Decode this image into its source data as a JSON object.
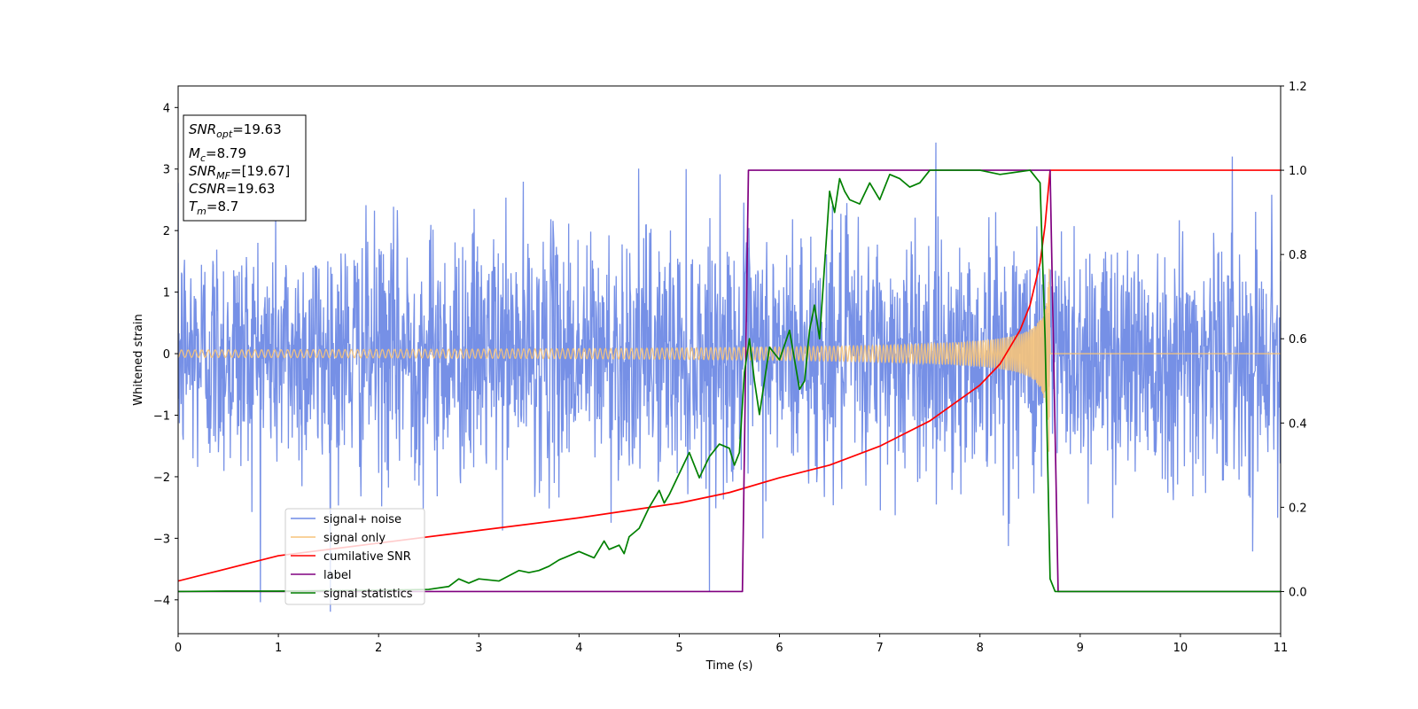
{
  "chart_data": {
    "type": "line",
    "xlabel": "Time (s)",
    "ylabel": "Whitened strain",
    "xlim": [
      0,
      11
    ],
    "ylim_left": [
      -4.55,
      4.35
    ],
    "ylim_right": [
      -0.1,
      1.2
    ],
    "x_ticks": [
      "0",
      "1",
      "2",
      "3",
      "4",
      "5",
      "6",
      "7",
      "8",
      "9",
      "10",
      "11"
    ],
    "y_left_ticks": [
      "4",
      "3",
      "2",
      "1",
      "0",
      "−1",
      "−2",
      "−3",
      "−4"
    ],
    "y_right_ticks": [
      "0.0",
      "0.2",
      "0.4",
      "0.6",
      "0.8",
      "1.0",
      "1.2"
    ],
    "annotation": {
      "snr_opt": {
        "sym": "SNR",
        "sub": "opt",
        "value": "=19.63"
      },
      "mc": {
        "sym": "M",
        "sub": "c",
        "value": "=8.79"
      },
      "snr_mf": {
        "sym": "SNR",
        "sub": "MF",
        "value": "=[19.67]"
      },
      "csnr": {
        "sym": "CSNR",
        "value": "=19.63"
      },
      "tm": {
        "sym": "T",
        "sub": "m",
        "value": "=8.7"
      }
    },
    "legend_position": "lower-left",
    "series": [
      {
        "name": "signal+ noise",
        "color": "#6f8ae5",
        "axis": "left",
        "description_range": [
          -4.2,
          4.0
        ]
      },
      {
        "name": "signal only",
        "color": "#f7c47a",
        "axis": "left",
        "merger_time": 8.7
      },
      {
        "name": "cumilative SNR",
        "color": "#ff0000",
        "axis": "right",
        "x": [
          0,
          1,
          2,
          3,
          4,
          5,
          5.5,
          6,
          6.5,
          7,
          7.5,
          8,
          8.2,
          8.4,
          8.5,
          8.6,
          8.65,
          8.7,
          11
        ],
        "y": [
          0.025,
          0.085,
          0.115,
          0.145,
          0.175,
          0.21,
          0.235,
          0.27,
          0.3,
          0.345,
          0.405,
          0.49,
          0.54,
          0.62,
          0.68,
          0.78,
          0.87,
          1.0,
          1.0
        ]
      },
      {
        "name": "label",
        "color": "#800080",
        "axis": "right",
        "x": [
          0,
          5.63,
          5.69,
          8.7,
          8.78,
          11
        ],
        "y": [
          0,
          0,
          1,
          1,
          0,
          0
        ]
      },
      {
        "name": "signal statistics",
        "color": "#008000",
        "axis": "right",
        "x": [
          0,
          0.5,
          1,
          1.5,
          2,
          2.5,
          2.7,
          2.8,
          2.9,
          3.0,
          3.2,
          3.4,
          3.5,
          3.6,
          3.7,
          3.8,
          4.0,
          4.1,
          4.15,
          4.25,
          4.3,
          4.4,
          4.45,
          4.5,
          4.6,
          4.7,
          4.8,
          4.85,
          4.9,
          5.0,
          5.1,
          5.2,
          5.3,
          5.4,
          5.5,
          5.55,
          5.6,
          5.65,
          5.7,
          5.75,
          5.8,
          5.85,
          5.9,
          6.0,
          6.1,
          6.2,
          6.25,
          6.3,
          6.35,
          6.4,
          6.5,
          6.55,
          6.6,
          6.65,
          6.7,
          6.8,
          6.9,
          7.0,
          7.1,
          7.2,
          7.3,
          7.4,
          7.5,
          7.7,
          8.0,
          8.2,
          8.5,
          8.6,
          8.65,
          8.7,
          8.75,
          8.8,
          11
        ],
        "y": [
          0,
          0.001,
          0.001,
          0.002,
          0.003,
          0.005,
          0.012,
          0.03,
          0.02,
          0.03,
          0.025,
          0.05,
          0.045,
          0.05,
          0.06,
          0.075,
          0.095,
          0.085,
          0.08,
          0.12,
          0.1,
          0.11,
          0.09,
          0.13,
          0.15,
          0.2,
          0.24,
          0.21,
          0.23,
          0.28,
          0.33,
          0.27,
          0.32,
          0.35,
          0.34,
          0.3,
          0.33,
          0.52,
          0.6,
          0.5,
          0.42,
          0.5,
          0.58,
          0.55,
          0.62,
          0.48,
          0.5,
          0.62,
          0.68,
          0.6,
          0.95,
          0.9,
          0.98,
          0.95,
          0.93,
          0.92,
          0.97,
          0.93,
          0.99,
          0.98,
          0.96,
          0.97,
          1.0,
          1.0,
          1.0,
          0.99,
          1.0,
          0.97,
          0.6,
          0.03,
          0.0,
          0.0,
          0.0
        ]
      }
    ]
  }
}
